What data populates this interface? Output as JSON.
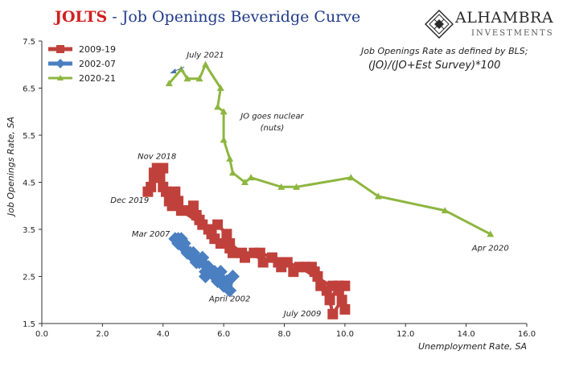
{
  "header": {
    "title_main": "JOLTS",
    "title_rest": " - Job Openings Beveridge Curve"
  },
  "logo": {
    "name": "ALHAMBRA",
    "sub": "INVESTMENTS",
    "icon": "diamond-lattice-logo",
    "colors": {
      "mark": "#2b2b2b"
    }
  },
  "definition": {
    "line1": "Job Openings Rate as defined by BLS;",
    "line2": "(JO)/(JO+Est Survey)*100"
  },
  "chart_data": {
    "type": "line",
    "title": "JOLTS - Job Openings Beveridge Curve",
    "xlabel": "Unemployment Rate, SA",
    "ylabel": "Job Openings Rate, SA",
    "xlim": [
      0,
      16
    ],
    "ylim": [
      1.5,
      7.5
    ],
    "xticks": [
      0,
      2,
      4,
      6,
      8,
      10,
      12,
      14,
      16
    ],
    "xtick_labels": [
      "0.0",
      "2.0",
      "4.0",
      "6.0",
      "8.0",
      "10.0",
      "12.0",
      "14.0",
      "16.0"
    ],
    "yticks": [
      1.5,
      2.5,
      3.5,
      4.5,
      5.5,
      6.5,
      7.5
    ],
    "ytick_labels": [
      "1.5",
      "2.5",
      "3.5",
      "4.5",
      "5.5",
      "6.5",
      "7.5"
    ],
    "grid": false,
    "legend_position": "top-left",
    "series": [
      {
        "name": "2009-19",
        "color": "#c0413b",
        "marker": "square",
        "points": [
          [
            10.0,
            1.8
          ],
          [
            9.9,
            2.0
          ],
          [
            9.6,
            1.7
          ],
          [
            9.5,
            2.0
          ],
          [
            9.8,
            2.3
          ],
          [
            10.0,
            2.3
          ],
          [
            9.6,
            2.3
          ],
          [
            9.4,
            2.2
          ],
          [
            9.2,
            2.3
          ],
          [
            9.1,
            2.5
          ],
          [
            9.0,
            2.6
          ],
          [
            8.9,
            2.7
          ],
          [
            8.7,
            2.7
          ],
          [
            8.3,
            2.6
          ],
          [
            8.1,
            2.8
          ],
          [
            7.9,
            2.7
          ],
          [
            7.8,
            2.8
          ],
          [
            7.6,
            2.9
          ],
          [
            7.3,
            2.8
          ],
          [
            7.0,
            3.0
          ],
          [
            6.7,
            2.9
          ],
          [
            6.3,
            3.0
          ],
          [
            6.2,
            3.1
          ],
          [
            5.9,
            3.2
          ],
          [
            6.1,
            3.4
          ],
          [
            5.8,
            3.6
          ],
          [
            5.6,
            3.4
          ],
          [
            5.5,
            3.5
          ],
          [
            5.2,
            3.7
          ],
          [
            5.1,
            3.8
          ],
          [
            5.0,
            4.0
          ],
          [
            4.9,
            3.9
          ],
          [
            4.7,
            3.9
          ],
          [
            4.5,
            4.1
          ],
          [
            4.4,
            4.3
          ],
          [
            4.2,
            4.1
          ],
          [
            4.1,
            4.3
          ],
          [
            4.0,
            4.4
          ],
          [
            3.9,
            4.6
          ],
          [
            4.0,
            4.8
          ],
          [
            3.7,
            4.7
          ],
          [
            3.6,
            4.4
          ],
          [
            3.5,
            4.3
          ],
          [
            3.7,
            4.6
          ],
          [
            3.8,
            4.8
          ],
          [
            4.3,
            4.0
          ],
          [
            4.6,
            3.9
          ],
          [
            5.3,
            3.6
          ],
          [
            5.7,
            3.3
          ],
          [
            6.2,
            3.2
          ],
          [
            6.6,
            3.0
          ],
          [
            7.2,
            3.0
          ],
          [
            8.5,
            2.7
          ],
          [
            9.8,
            2.2
          ]
        ]
      },
      {
        "name": "2002-07",
        "color": "#4a7fc1",
        "marker": "diamond",
        "points": [
          [
            5.7,
            2.5
          ],
          [
            6.0,
            2.3
          ],
          [
            5.8,
            2.4
          ],
          [
            5.8,
            2.5
          ],
          [
            5.7,
            2.6
          ],
          [
            5.6,
            2.6
          ],
          [
            5.4,
            2.5
          ],
          [
            5.4,
            2.6
          ],
          [
            5.5,
            2.7
          ],
          [
            5.3,
            2.8
          ],
          [
            5.2,
            2.8
          ],
          [
            5.0,
            2.9
          ],
          [
            5.0,
            3.0
          ],
          [
            4.9,
            3.0
          ],
          [
            4.7,
            3.1
          ],
          [
            4.6,
            3.2
          ],
          [
            4.5,
            3.2
          ],
          [
            4.5,
            3.3
          ],
          [
            4.4,
            3.3
          ],
          [
            4.6,
            3.3
          ],
          [
            4.7,
            3.2
          ],
          [
            4.8,
            3.0
          ],
          [
            5.1,
            2.8
          ],
          [
            5.3,
            2.9
          ],
          [
            5.5,
            2.6
          ],
          [
            5.9,
            2.6
          ],
          [
            6.1,
            2.4
          ],
          [
            6.2,
            2.2
          ],
          [
            6.3,
            2.5
          ],
          [
            5.8,
            2.4
          ]
        ]
      },
      {
        "name": "2020-21",
        "color": "#8db640",
        "marker": "triangle",
        "points": [
          [
            14.8,
            3.4
          ],
          [
            13.3,
            3.9
          ],
          [
            11.1,
            4.2
          ],
          [
            10.2,
            4.6
          ],
          [
            8.4,
            4.4
          ],
          [
            7.9,
            4.4
          ],
          [
            6.9,
            4.6
          ],
          [
            6.7,
            4.5
          ],
          [
            6.3,
            4.7
          ],
          [
            6.2,
            5.0
          ],
          [
            6.0,
            5.4
          ],
          [
            6.0,
            6.0
          ],
          [
            5.8,
            6.1
          ],
          [
            5.9,
            6.5
          ],
          [
            5.4,
            7.0
          ],
          [
            5.2,
            6.7
          ],
          [
            4.8,
            6.7
          ],
          [
            4.6,
            6.9
          ],
          [
            4.2,
            6.6
          ]
        ]
      }
    ],
    "annotations": [
      {
        "text": "July 2021",
        "x": 5.4,
        "y": 7.15
      },
      {
        "text": "JO goes nuclear",
        "x": 7.6,
        "y": 5.85
      },
      {
        "text": "(nuts)",
        "x": 7.6,
        "y": 5.6
      },
      {
        "text": "Nov 2018",
        "x": 3.8,
        "y": 5.0
      },
      {
        "text": "Dec 2019",
        "x": 2.9,
        "y": 4.06
      },
      {
        "text": "Mar 2007",
        "x": 3.6,
        "y": 3.35
      },
      {
        "text": "April 2002",
        "x": 6.2,
        "y": 1.97
      },
      {
        "text": "July 2009",
        "x": 8.6,
        "y": 1.65
      },
      {
        "text": "Apr 2020",
        "x": 14.8,
        "y": 3.05
      }
    ]
  }
}
